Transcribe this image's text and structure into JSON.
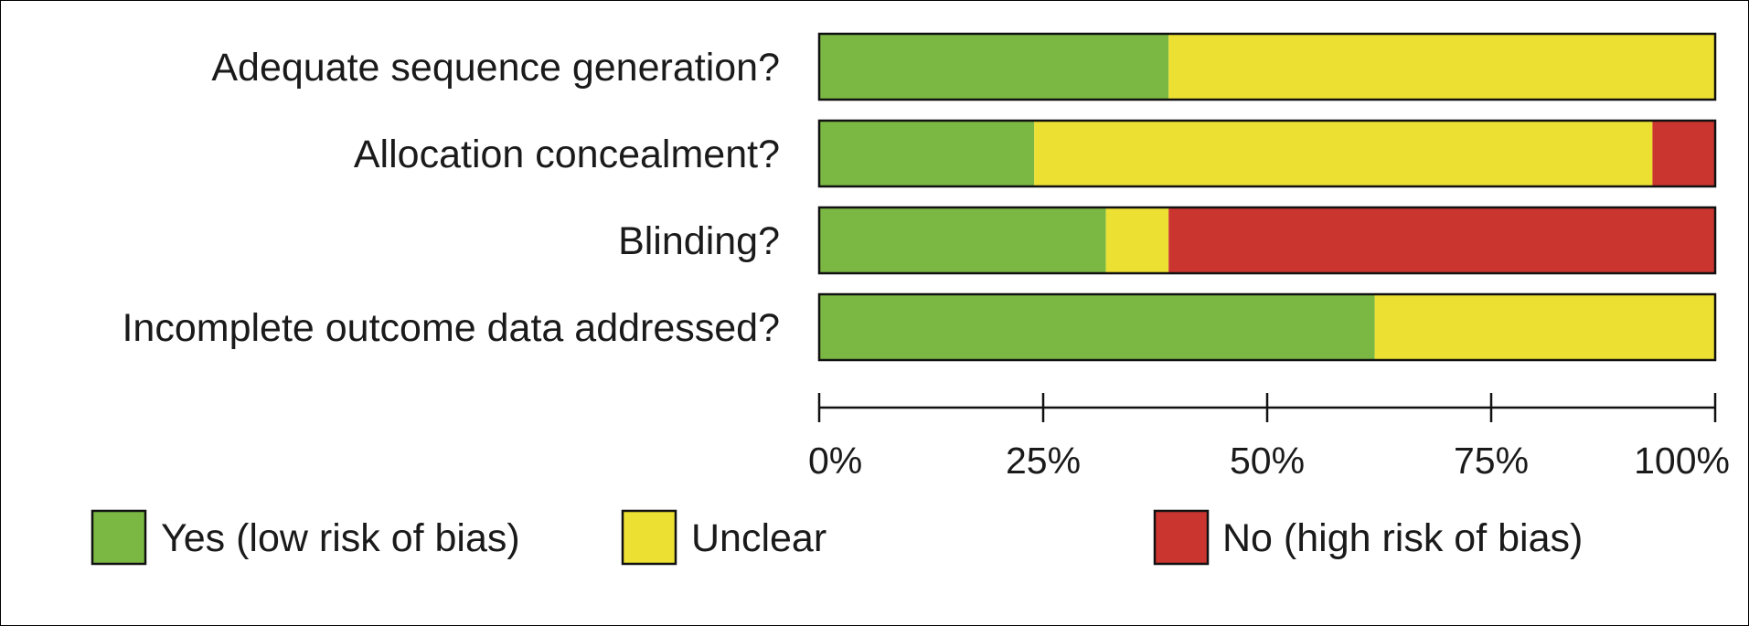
{
  "chart_data": {
    "type": "bar",
    "orientation": "horizontal",
    "stacked": true,
    "categories": [
      "Adequate sequence generation?",
      "Allocation concealment?",
      "Blinding?",
      "Incomplete outcome data addressed?"
    ],
    "series": [
      {
        "name": "Yes (low risk of bias)",
        "color": "#7bb843",
        "values": [
          39,
          24,
          32,
          62
        ]
      },
      {
        "name": "Unclear",
        "color": "#ece032",
        "values": [
          61,
          69,
          7,
          38
        ]
      },
      {
        "name": "No (high risk of bias)",
        "color": "#cb3530",
        "values": [
          0,
          7,
          61,
          0
        ]
      }
    ],
    "xticks": [
      "0%",
      "25%",
      "50%",
      "75%",
      "100%"
    ],
    "xtick_values": [
      0,
      25,
      50,
      75,
      100
    ],
    "xlim": [
      0,
      100
    ],
    "title": "",
    "xlabel": "",
    "ylabel": "",
    "grid": false,
    "legend_position": "bottom"
  }
}
